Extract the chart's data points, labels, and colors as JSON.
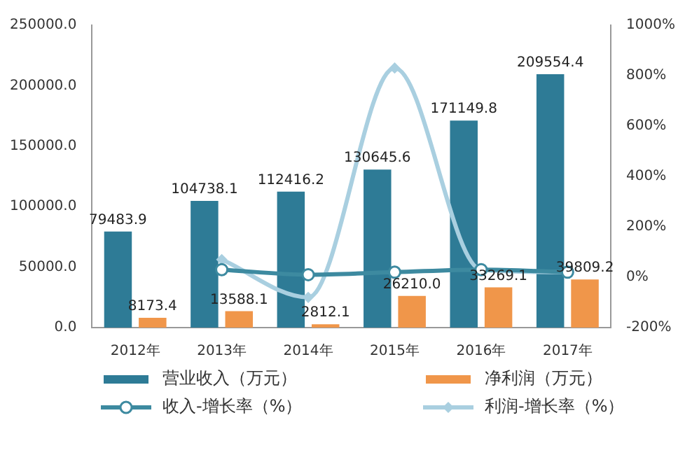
{
  "chart_data": {
    "type": "bar",
    "categories": [
      "2012年",
      "2013年",
      "2014年",
      "2015年",
      "2016年",
      "2017年"
    ],
    "series": [
      {
        "name": "营业收入（万元）",
        "color": "#2e7b96",
        "values": [
          79483.9,
          104738.1,
          112416.2,
          130645.6,
          171149.8,
          209554.4
        ],
        "value_labels": [
          "79483.9",
          "104738.1",
          "112416.2",
          "130645.6",
          "171149.8",
          "209554.4"
        ]
      },
      {
        "name": "净利润（万元）",
        "color": "#f0964a",
        "values": [
          8173.4,
          13588.1,
          2812.1,
          26210.0,
          33269.1,
          39809.2
        ],
        "value_labels": [
          "8173.4",
          "13588.1",
          "2812.1",
          "26210.0",
          "33269.1",
          "39809.2"
        ]
      },
      {
        "name": "收入-增长率（%）",
        "type": "line",
        "axis": "y2",
        "color": "#3d8aa0",
        "marker": "circle",
        "values": [
          null,
          30,
          10,
          20,
          30,
          20
        ]
      },
      {
        "name": "利润-增长率（%）",
        "type": "line",
        "axis": "y2",
        "color": "#a9cfe0",
        "marker": "diamond",
        "values": [
          null,
          70,
          -80,
          830,
          30,
          20
        ]
      }
    ],
    "ylim": [
      0,
      250000
    ],
    "yticks": [
      {
        "value": 0,
        "label": "0.0"
      },
      {
        "value": 50000,
        "label": "50000.0"
      },
      {
        "value": 100000,
        "label": "100000.0"
      },
      {
        "value": 150000,
        "label": "150000.0"
      },
      {
        "value": 200000,
        "label": "200000.0"
      },
      {
        "value": 250000,
        "label": "250000.0"
      }
    ],
    "y2lim": [
      -200,
      1000
    ],
    "y2ticks": [
      {
        "value": -200,
        "label": "-200%"
      },
      {
        "value": 0,
        "label": "0%"
      },
      {
        "value": 200,
        "label": "200%"
      },
      {
        "value": 400,
        "label": "400%"
      },
      {
        "value": 600,
        "label": "600%"
      },
      {
        "value": 800,
        "label": "800%"
      },
      {
        "value": 1000,
        "label": "1000%"
      }
    ],
    "grid": false,
    "legend": "bottom"
  }
}
